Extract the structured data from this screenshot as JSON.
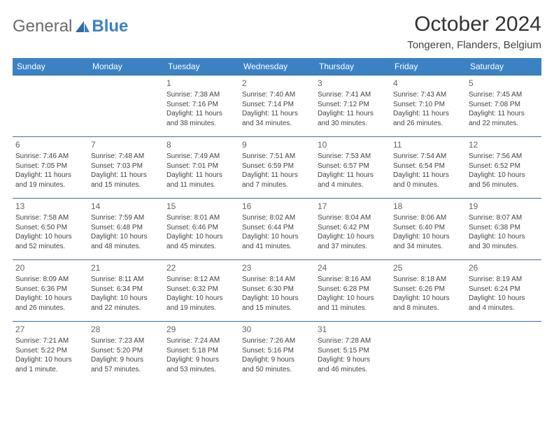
{
  "brand": {
    "part1": "General",
    "part2": "Blue"
  },
  "title": "October 2024",
  "location": "Tongeren, Flanders, Belgium",
  "colors": {
    "header_bg": "#3b82c4",
    "border": "#3b6fa0"
  },
  "weekdays": [
    "Sunday",
    "Monday",
    "Tuesday",
    "Wednesday",
    "Thursday",
    "Friday",
    "Saturday"
  ],
  "weeks": [
    [
      null,
      null,
      {
        "n": "1",
        "sr": "Sunrise: 7:38 AM",
        "ss": "Sunset: 7:16 PM",
        "d1": "Daylight: 11 hours",
        "d2": "and 38 minutes."
      },
      {
        "n": "2",
        "sr": "Sunrise: 7:40 AM",
        "ss": "Sunset: 7:14 PM",
        "d1": "Daylight: 11 hours",
        "d2": "and 34 minutes."
      },
      {
        "n": "3",
        "sr": "Sunrise: 7:41 AM",
        "ss": "Sunset: 7:12 PM",
        "d1": "Daylight: 11 hours",
        "d2": "and 30 minutes."
      },
      {
        "n": "4",
        "sr": "Sunrise: 7:43 AM",
        "ss": "Sunset: 7:10 PM",
        "d1": "Daylight: 11 hours",
        "d2": "and 26 minutes."
      },
      {
        "n": "5",
        "sr": "Sunrise: 7:45 AM",
        "ss": "Sunset: 7:08 PM",
        "d1": "Daylight: 11 hours",
        "d2": "and 22 minutes."
      }
    ],
    [
      {
        "n": "6",
        "sr": "Sunrise: 7:46 AM",
        "ss": "Sunset: 7:05 PM",
        "d1": "Daylight: 11 hours",
        "d2": "and 19 minutes."
      },
      {
        "n": "7",
        "sr": "Sunrise: 7:48 AM",
        "ss": "Sunset: 7:03 PM",
        "d1": "Daylight: 11 hours",
        "d2": "and 15 minutes."
      },
      {
        "n": "8",
        "sr": "Sunrise: 7:49 AM",
        "ss": "Sunset: 7:01 PM",
        "d1": "Daylight: 11 hours",
        "d2": "and 11 minutes."
      },
      {
        "n": "9",
        "sr": "Sunrise: 7:51 AM",
        "ss": "Sunset: 6:59 PM",
        "d1": "Daylight: 11 hours",
        "d2": "and 7 minutes."
      },
      {
        "n": "10",
        "sr": "Sunrise: 7:53 AM",
        "ss": "Sunset: 6:57 PM",
        "d1": "Daylight: 11 hours",
        "d2": "and 4 minutes."
      },
      {
        "n": "11",
        "sr": "Sunrise: 7:54 AM",
        "ss": "Sunset: 6:54 PM",
        "d1": "Daylight: 11 hours",
        "d2": "and 0 minutes."
      },
      {
        "n": "12",
        "sr": "Sunrise: 7:56 AM",
        "ss": "Sunset: 6:52 PM",
        "d1": "Daylight: 10 hours",
        "d2": "and 56 minutes."
      }
    ],
    [
      {
        "n": "13",
        "sr": "Sunrise: 7:58 AM",
        "ss": "Sunset: 6:50 PM",
        "d1": "Daylight: 10 hours",
        "d2": "and 52 minutes."
      },
      {
        "n": "14",
        "sr": "Sunrise: 7:59 AM",
        "ss": "Sunset: 6:48 PM",
        "d1": "Daylight: 10 hours",
        "d2": "and 48 minutes."
      },
      {
        "n": "15",
        "sr": "Sunrise: 8:01 AM",
        "ss": "Sunset: 6:46 PM",
        "d1": "Daylight: 10 hours",
        "d2": "and 45 minutes."
      },
      {
        "n": "16",
        "sr": "Sunrise: 8:02 AM",
        "ss": "Sunset: 6:44 PM",
        "d1": "Daylight: 10 hours",
        "d2": "and 41 minutes."
      },
      {
        "n": "17",
        "sr": "Sunrise: 8:04 AM",
        "ss": "Sunset: 6:42 PM",
        "d1": "Daylight: 10 hours",
        "d2": "and 37 minutes."
      },
      {
        "n": "18",
        "sr": "Sunrise: 8:06 AM",
        "ss": "Sunset: 6:40 PM",
        "d1": "Daylight: 10 hours",
        "d2": "and 34 minutes."
      },
      {
        "n": "19",
        "sr": "Sunrise: 8:07 AM",
        "ss": "Sunset: 6:38 PM",
        "d1": "Daylight: 10 hours",
        "d2": "and 30 minutes."
      }
    ],
    [
      {
        "n": "20",
        "sr": "Sunrise: 8:09 AM",
        "ss": "Sunset: 6:36 PM",
        "d1": "Daylight: 10 hours",
        "d2": "and 26 minutes."
      },
      {
        "n": "21",
        "sr": "Sunrise: 8:11 AM",
        "ss": "Sunset: 6:34 PM",
        "d1": "Daylight: 10 hours",
        "d2": "and 22 minutes."
      },
      {
        "n": "22",
        "sr": "Sunrise: 8:12 AM",
        "ss": "Sunset: 6:32 PM",
        "d1": "Daylight: 10 hours",
        "d2": "and 19 minutes."
      },
      {
        "n": "23",
        "sr": "Sunrise: 8:14 AM",
        "ss": "Sunset: 6:30 PM",
        "d1": "Daylight: 10 hours",
        "d2": "and 15 minutes."
      },
      {
        "n": "24",
        "sr": "Sunrise: 8:16 AM",
        "ss": "Sunset: 6:28 PM",
        "d1": "Daylight: 10 hours",
        "d2": "and 11 minutes."
      },
      {
        "n": "25",
        "sr": "Sunrise: 8:18 AM",
        "ss": "Sunset: 6:26 PM",
        "d1": "Daylight: 10 hours",
        "d2": "and 8 minutes."
      },
      {
        "n": "26",
        "sr": "Sunrise: 8:19 AM",
        "ss": "Sunset: 6:24 PM",
        "d1": "Daylight: 10 hours",
        "d2": "and 4 minutes."
      }
    ],
    [
      {
        "n": "27",
        "sr": "Sunrise: 7:21 AM",
        "ss": "Sunset: 5:22 PM",
        "d1": "Daylight: 10 hours",
        "d2": "and 1 minute."
      },
      {
        "n": "28",
        "sr": "Sunrise: 7:23 AM",
        "ss": "Sunset: 5:20 PM",
        "d1": "Daylight: 9 hours",
        "d2": "and 57 minutes."
      },
      {
        "n": "29",
        "sr": "Sunrise: 7:24 AM",
        "ss": "Sunset: 5:18 PM",
        "d1": "Daylight: 9 hours",
        "d2": "and 53 minutes."
      },
      {
        "n": "30",
        "sr": "Sunrise: 7:26 AM",
        "ss": "Sunset: 5:16 PM",
        "d1": "Daylight: 9 hours",
        "d2": "and 50 minutes."
      },
      {
        "n": "31",
        "sr": "Sunrise: 7:28 AM",
        "ss": "Sunset: 5:15 PM",
        "d1": "Daylight: 9 hours",
        "d2": "and 46 minutes."
      },
      null,
      null
    ]
  ]
}
